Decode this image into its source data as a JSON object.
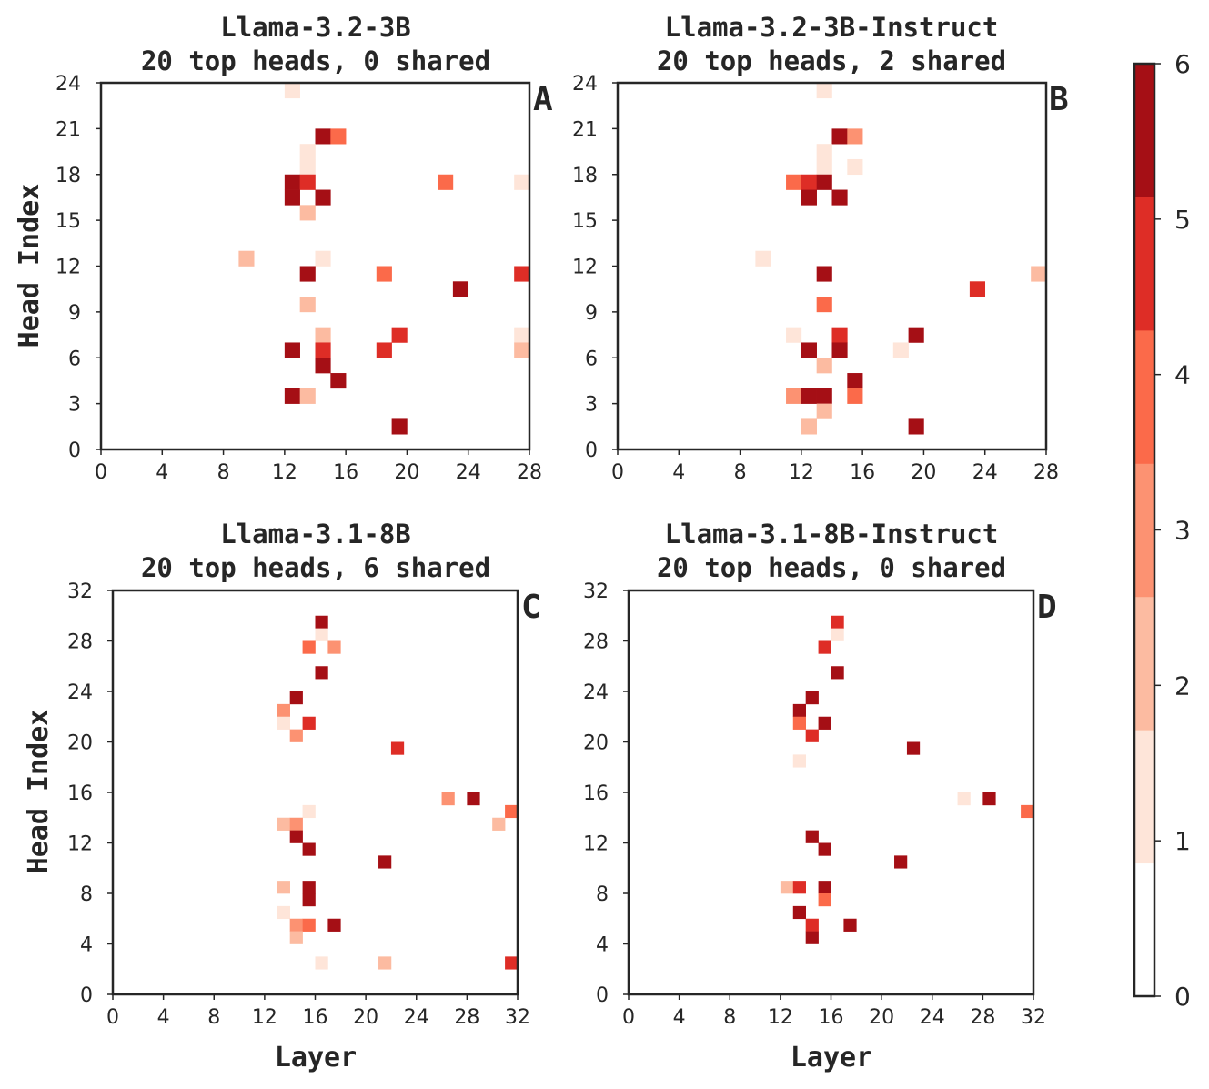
{
  "colorbar": {
    "ticks": [
      "0",
      "1",
      "2",
      "3",
      "4",
      "5",
      "6"
    ],
    "min": 0,
    "max": 6,
    "colors": [
      "#ffffff",
      "#fee5d9",
      "#fcbba1",
      "#fc9272",
      "#fb6a4a",
      "#de2d26",
      "#a50f15"
    ]
  },
  "chart_data": [
    {
      "type": "heatmap",
      "panel": "A",
      "title_line1": "Llama-3.2-3B",
      "title_line2": "20 top heads, 0 shared",
      "xlabel": "",
      "ylabel": "Head Index",
      "xlim": [
        0,
        28
      ],
      "ylim": [
        0,
        24
      ],
      "xticks": [
        0,
        4,
        8,
        12,
        16,
        20,
        24,
        28
      ],
      "yticks": [
        0,
        3,
        6,
        9,
        12,
        15,
        18,
        21,
        24
      ],
      "cells": [
        {
          "layer": 12,
          "head": 23,
          "value": 1
        },
        {
          "layer": 14,
          "head": 20,
          "value": 6
        },
        {
          "layer": 15,
          "head": 20,
          "value": 4
        },
        {
          "layer": 13,
          "head": 19,
          "value": 1
        },
        {
          "layer": 13,
          "head": 18,
          "value": 1
        },
        {
          "layer": 12,
          "head": 17,
          "value": 6
        },
        {
          "layer": 13,
          "head": 17,
          "value": 5
        },
        {
          "layer": 22,
          "head": 17,
          "value": 4
        },
        {
          "layer": 27,
          "head": 17,
          "value": 1
        },
        {
          "layer": 12,
          "head": 16,
          "value": 6
        },
        {
          "layer": 14,
          "head": 16,
          "value": 6
        },
        {
          "layer": 13,
          "head": 15,
          "value": 2
        },
        {
          "layer": 9,
          "head": 12,
          "value": 2
        },
        {
          "layer": 14,
          "head": 12,
          "value": 1
        },
        {
          "layer": 13,
          "head": 11,
          "value": 6
        },
        {
          "layer": 18,
          "head": 11,
          "value": 4
        },
        {
          "layer": 27,
          "head": 11,
          "value": 5
        },
        {
          "layer": 23,
          "head": 10,
          "value": 6
        },
        {
          "layer": 13,
          "head": 9,
          "value": 2
        },
        {
          "layer": 14,
          "head": 7,
          "value": 2
        },
        {
          "layer": 19,
          "head": 7,
          "value": 5
        },
        {
          "layer": 27,
          "head": 7,
          "value": 1
        },
        {
          "layer": 12,
          "head": 6,
          "value": 6
        },
        {
          "layer": 14,
          "head": 6,
          "value": 5
        },
        {
          "layer": 18,
          "head": 6,
          "value": 5
        },
        {
          "layer": 27,
          "head": 6,
          "value": 2
        },
        {
          "layer": 14,
          "head": 5,
          "value": 6
        },
        {
          "layer": 15,
          "head": 4,
          "value": 6
        },
        {
          "layer": 12,
          "head": 3,
          "value": 6
        },
        {
          "layer": 13,
          "head": 3,
          "value": 2
        },
        {
          "layer": 19,
          "head": 1,
          "value": 6
        }
      ]
    },
    {
      "type": "heatmap",
      "panel": "B",
      "title_line1": "Llama-3.2-3B-Instruct",
      "title_line2": "20 top heads, 2 shared",
      "xlabel": "",
      "ylabel": "",
      "xlim": [
        0,
        28
      ],
      "ylim": [
        0,
        24
      ],
      "xticks": [
        0,
        4,
        8,
        12,
        16,
        20,
        24,
        28
      ],
      "yticks": [
        0,
        3,
        6,
        9,
        12,
        15,
        18,
        21,
        24
      ],
      "cells": [
        {
          "layer": 13,
          "head": 23,
          "value": 1
        },
        {
          "layer": 14,
          "head": 20,
          "value": 6
        },
        {
          "layer": 15,
          "head": 20,
          "value": 3
        },
        {
          "layer": 13,
          "head": 19,
          "value": 1
        },
        {
          "layer": 13,
          "head": 18,
          "value": 1
        },
        {
          "layer": 15,
          "head": 18,
          "value": 1
        },
        {
          "layer": 11,
          "head": 17,
          "value": 4
        },
        {
          "layer": 12,
          "head": 17,
          "value": 5
        },
        {
          "layer": 13,
          "head": 17,
          "value": 6
        },
        {
          "layer": 12,
          "head": 16,
          "value": 6
        },
        {
          "layer": 14,
          "head": 16,
          "value": 6
        },
        {
          "layer": 9,
          "head": 12,
          "value": 1
        },
        {
          "layer": 13,
          "head": 11,
          "value": 6
        },
        {
          "layer": 27,
          "head": 11,
          "value": 2
        },
        {
          "layer": 23,
          "head": 10,
          "value": 5
        },
        {
          "layer": 13,
          "head": 9,
          "value": 4
        },
        {
          "layer": 11,
          "head": 7,
          "value": 1
        },
        {
          "layer": 14,
          "head": 7,
          "value": 5
        },
        {
          "layer": 19,
          "head": 7,
          "value": 6
        },
        {
          "layer": 12,
          "head": 6,
          "value": 6
        },
        {
          "layer": 14,
          "head": 6,
          "value": 6
        },
        {
          "layer": 18,
          "head": 6,
          "value": 1
        },
        {
          "layer": 13,
          "head": 5,
          "value": 2
        },
        {
          "layer": 15,
          "head": 4,
          "value": 6
        },
        {
          "layer": 11,
          "head": 3,
          "value": 3
        },
        {
          "layer": 12,
          "head": 3,
          "value": 6
        },
        {
          "layer": 13,
          "head": 3,
          "value": 6
        },
        {
          "layer": 15,
          "head": 3,
          "value": 4
        },
        {
          "layer": 13,
          "head": 2,
          "value": 2
        },
        {
          "layer": 12,
          "head": 1,
          "value": 2
        },
        {
          "layer": 19,
          "head": 1,
          "value": 6
        }
      ]
    },
    {
      "type": "heatmap",
      "panel": "C",
      "title_line1": "Llama-3.1-8B",
      "title_line2": "20 top heads, 6 shared",
      "xlabel": "Layer",
      "ylabel": "Head Index",
      "xlim": [
        0,
        32
      ],
      "ylim": [
        0,
        32
      ],
      "xticks": [
        0,
        4,
        8,
        12,
        16,
        20,
        24,
        28,
        32
      ],
      "yticks": [
        0,
        4,
        8,
        12,
        16,
        20,
        24,
        28,
        32
      ],
      "cells": [
        {
          "layer": 16,
          "head": 29,
          "value": 6
        },
        {
          "layer": 16,
          "head": 28,
          "value": 1
        },
        {
          "layer": 15,
          "head": 27,
          "value": 4
        },
        {
          "layer": 17,
          "head": 27,
          "value": 3
        },
        {
          "layer": 16,
          "head": 25,
          "value": 6
        },
        {
          "layer": 14,
          "head": 23,
          "value": 6
        },
        {
          "layer": 13,
          "head": 22,
          "value": 3
        },
        {
          "layer": 13,
          "head": 21,
          "value": 1
        },
        {
          "layer": 15,
          "head": 21,
          "value": 5
        },
        {
          "layer": 14,
          "head": 20,
          "value": 3
        },
        {
          "layer": 22,
          "head": 19,
          "value": 5
        },
        {
          "layer": 26,
          "head": 15,
          "value": 3
        },
        {
          "layer": 28,
          "head": 15,
          "value": 6
        },
        {
          "layer": 15,
          "head": 14,
          "value": 1
        },
        {
          "layer": 31,
          "head": 14,
          "value": 4
        },
        {
          "layer": 13,
          "head": 13,
          "value": 2
        },
        {
          "layer": 14,
          "head": 13,
          "value": 3
        },
        {
          "layer": 30,
          "head": 13,
          "value": 2
        },
        {
          "layer": 14,
          "head": 12,
          "value": 6
        },
        {
          "layer": 15,
          "head": 11,
          "value": 6
        },
        {
          "layer": 21,
          "head": 10,
          "value": 6
        },
        {
          "layer": 13,
          "head": 8,
          "value": 2
        },
        {
          "layer": 15,
          "head": 8,
          "value": 6
        },
        {
          "layer": 15,
          "head": 7,
          "value": 6
        },
        {
          "layer": 13,
          "head": 6,
          "value": 1
        },
        {
          "layer": 14,
          "head": 5,
          "value": 3
        },
        {
          "layer": 15,
          "head": 5,
          "value": 4
        },
        {
          "layer": 17,
          "head": 5,
          "value": 6
        },
        {
          "layer": 14,
          "head": 4,
          "value": 2
        },
        {
          "layer": 16,
          "head": 2,
          "value": 1
        },
        {
          "layer": 21,
          "head": 2,
          "value": 2
        },
        {
          "layer": 31,
          "head": 2,
          "value": 5
        }
      ]
    },
    {
      "type": "heatmap",
      "panel": "D",
      "title_line1": "Llama-3.1-8B-Instruct",
      "title_line2": "20 top heads, 0 shared",
      "xlabel": "Layer",
      "ylabel": "",
      "xlim": [
        0,
        32
      ],
      "ylim": [
        0,
        32
      ],
      "xticks": [
        0,
        4,
        8,
        12,
        16,
        20,
        24,
        28,
        32
      ],
      "yticks": [
        0,
        4,
        8,
        12,
        16,
        20,
        24,
        28,
        32
      ],
      "cells": [
        {
          "layer": 16,
          "head": 29,
          "value": 5
        },
        {
          "layer": 16,
          "head": 28,
          "value": 1
        },
        {
          "layer": 15,
          "head": 27,
          "value": 5
        },
        {
          "layer": 16,
          "head": 25,
          "value": 6
        },
        {
          "layer": 14,
          "head": 23,
          "value": 6
        },
        {
          "layer": 13,
          "head": 22,
          "value": 6
        },
        {
          "layer": 13,
          "head": 21,
          "value": 4
        },
        {
          "layer": 15,
          "head": 21,
          "value": 6
        },
        {
          "layer": 14,
          "head": 20,
          "value": 5
        },
        {
          "layer": 22,
          "head": 19,
          "value": 6
        },
        {
          "layer": 13,
          "head": 18,
          "value": 1
        },
        {
          "layer": 26,
          "head": 15,
          "value": 1
        },
        {
          "layer": 28,
          "head": 15,
          "value": 6
        },
        {
          "layer": 31,
          "head": 14,
          "value": 4
        },
        {
          "layer": 14,
          "head": 12,
          "value": 6
        },
        {
          "layer": 15,
          "head": 11,
          "value": 6
        },
        {
          "layer": 21,
          "head": 10,
          "value": 6
        },
        {
          "layer": 12,
          "head": 8,
          "value": 2
        },
        {
          "layer": 13,
          "head": 8,
          "value": 5
        },
        {
          "layer": 15,
          "head": 8,
          "value": 6
        },
        {
          "layer": 15,
          "head": 7,
          "value": 4
        },
        {
          "layer": 13,
          "head": 6,
          "value": 6
        },
        {
          "layer": 14,
          "head": 5,
          "value": 5
        },
        {
          "layer": 17,
          "head": 5,
          "value": 6
        },
        {
          "layer": 14,
          "head": 4,
          "value": 6
        }
      ]
    }
  ]
}
